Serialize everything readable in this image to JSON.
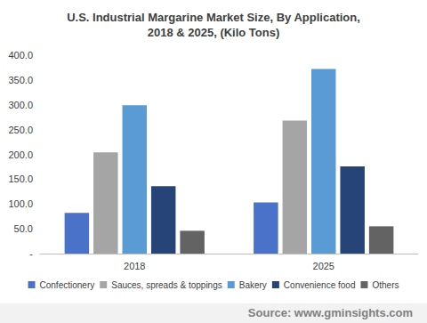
{
  "chart_data": {
    "type": "bar",
    "title": "U.S. Industrial Margarine Market Size, By Application,\n2018 & 2025, (Kilo Tons)",
    "categories": [
      "2018",
      "2025"
    ],
    "series": [
      {
        "name": "Confectionery",
        "color": "#4a72c8",
        "values": [
          82,
          103
        ]
      },
      {
        "name": "Sauces, spreads & toppings",
        "color": "#a5a5a5",
        "values": [
          204,
          268
        ]
      },
      {
        "name": "Bakery",
        "color": "#5b9bd5",
        "values": [
          299,
          372
        ]
      },
      {
        "name": "Convenience food",
        "color": "#264478",
        "values": [
          136,
          176
        ]
      },
      {
        "name": "Others",
        "color": "#636363",
        "values": [
          46,
          55
        ]
      }
    ],
    "ylim": [
      0,
      400
    ],
    "yticks": [
      {
        "value": 0,
        "label": "-"
      },
      {
        "value": 50,
        "label": "50.0"
      },
      {
        "value": 100,
        "label": "100.0"
      },
      {
        "value": 150,
        "label": "150.0"
      },
      {
        "value": 200,
        "label": "200.0"
      },
      {
        "value": 250,
        "label": "250.0"
      },
      {
        "value": 300,
        "label": "300.0"
      },
      {
        "value": 350,
        "label": "350.0"
      },
      {
        "value": 400,
        "label": "400.0"
      }
    ],
    "grid": false,
    "legend": "bottom",
    "annotations": [
      "Source: www.gminsights.com"
    ]
  }
}
